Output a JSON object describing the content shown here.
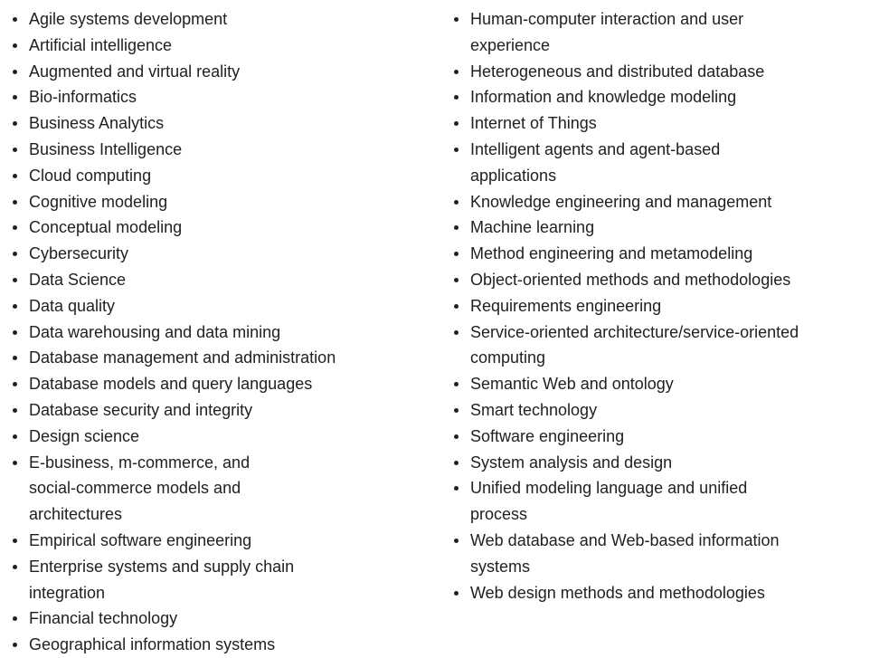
{
  "left_column": [
    "Agile systems development",
    "Artificial intelligence",
    "Augmented and virtual reality",
    "Bio-informatics",
    "Business Analytics",
    "Business Intelligence",
    "Cloud computing",
    "Cognitive modeling",
    "Conceptual modeling",
    "Cybersecurity",
    "Data Science",
    "Data quality",
    "Data warehousing and data mining",
    "Database management and administration",
    "Database models and query languages",
    "Database security and integrity",
    "Design science",
    "E-business, m-commerce, and social-commerce models and architectures",
    "Empirical software engineering",
    "Enterprise systems and supply chain integration",
    "Financial technology",
    "Geographical information systems"
  ],
  "right_column": [
    "Human-computer interaction and user experience",
    "Heterogeneous and distributed database",
    "Information and knowledge modeling",
    "Internet of Things",
    "Intelligent agents and agent-based applications",
    "Knowledge engineering and management",
    "Machine learning",
    "Method engineering and metamodeling",
    "Object-oriented methods and methodologies",
    "Requirements engineering",
    "Service-oriented architecture/service-oriented computing",
    "Semantic Web and ontology",
    "Smart technology",
    "Software engineering",
    "System analysis and design",
    "Unified modeling language and unified process",
    "Web database and Web-based information systems",
    "Web design methods and methodologies"
  ]
}
